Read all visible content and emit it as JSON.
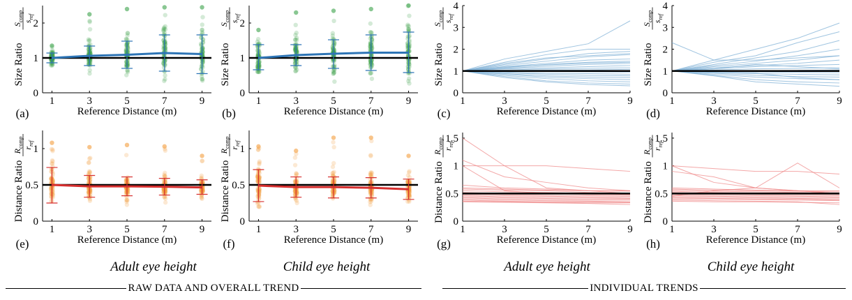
{
  "colors": {
    "size_scatter": "#3aa14a",
    "size_trend": "#2e75b6",
    "size_individual": "#7fb0d6",
    "distance_scatter": "#f39c3c",
    "distance_trend": "#d62f2f",
    "distance_individual": "#ef8a8a",
    "reference": "#000000"
  },
  "captions": {
    "adult": "Adult eye height",
    "child": "Child eye height"
  },
  "sections": {
    "raw": "RAW DATA AND OVERALL TREND",
    "individual": "INDIVIDUAL TRENDS"
  },
  "chart_data": [
    {
      "panel": "(a)",
      "type": "scatter",
      "group": "Adult eye height",
      "xlabel": "Reference Distance (m)",
      "ylabel": "Size Ratio",
      "ylabel_formula": "S_comp / s_ref",
      "x": [
        1,
        3,
        5,
        7,
        9
      ],
      "xlim": [
        0.5,
        9.5
      ],
      "ylim": [
        0,
        2.5
      ],
      "yticks": [
        0,
        1,
        2
      ],
      "xticks": [
        1,
        3,
        5,
        7,
        9
      ],
      "reference_line": 1,
      "trend": [
        1.0,
        1.06,
        1.09,
        1.14,
        1.11
      ],
      "error_low": [
        0.86,
        0.78,
        0.7,
        0.62,
        0.55
      ],
      "error_high": [
        1.14,
        1.34,
        1.48,
        1.66,
        1.66
      ],
      "spread": [
        [
          0.7,
          1.35
        ],
        [
          0.5,
          2.25
        ],
        [
          0.3,
          2.4
        ],
        [
          0.25,
          2.45
        ],
        [
          0.2,
          2.45
        ]
      ]
    },
    {
      "panel": "(b)",
      "type": "scatter",
      "group": "Child eye height",
      "xlabel": "Reference Distance (m)",
      "ylabel": "Size Ratio",
      "ylabel_formula": "S_comp / s_ref",
      "x": [
        1,
        3,
        5,
        7,
        9
      ],
      "xlim": [
        0.5,
        9.5
      ],
      "ylim": [
        0,
        2.5
      ],
      "yticks": [
        0,
        1,
        2
      ],
      "xticks": [
        1,
        3,
        5,
        7,
        9
      ],
      "reference_line": 1,
      "trend": [
        1.0,
        1.08,
        1.12,
        1.15,
        1.15
      ],
      "error_low": [
        0.66,
        0.78,
        0.7,
        0.64,
        0.58
      ],
      "error_high": [
        1.38,
        1.38,
        1.52,
        1.66,
        1.74
      ],
      "spread": [
        [
          0.6,
          1.8
        ],
        [
          0.45,
          2.3
        ],
        [
          0.3,
          2.35
        ],
        [
          0.25,
          2.4
        ],
        [
          0.2,
          2.5
        ]
      ]
    },
    {
      "panel": "(c)",
      "type": "line",
      "group": "Adult eye height",
      "xlabel": "Reference Distance (m)",
      "ylabel": "Size Ratio",
      "ylabel_formula": "S_comp / s_ref",
      "x": [
        1,
        3,
        5,
        7,
        9
      ],
      "xlim": [
        1,
        9
      ],
      "ylim": [
        0,
        4
      ],
      "yticks": [
        0,
        1,
        2,
        3,
        4
      ],
      "xticks": [
        1,
        3,
        5,
        7,
        9
      ],
      "reference_line": 1,
      "individual_series": [
        [
          1.0,
          1.55,
          1.9,
          2.25,
          3.3
        ],
        [
          1.0,
          1.4,
          1.75,
          2.0,
          2.0
        ],
        [
          1.0,
          1.3,
          1.55,
          1.8,
          1.9
        ],
        [
          1.0,
          1.25,
          1.45,
          1.65,
          1.75
        ],
        [
          1.0,
          1.2,
          1.35,
          1.5,
          1.55
        ],
        [
          1.0,
          1.15,
          1.3,
          1.4,
          1.45
        ],
        [
          1.0,
          1.12,
          1.22,
          1.3,
          1.35
        ],
        [
          1.0,
          1.1,
          1.15,
          1.2,
          1.25
        ],
        [
          1.0,
          1.05,
          1.1,
          1.12,
          1.15
        ],
        [
          1.0,
          1.02,
          1.05,
          1.05,
          1.08
        ],
        [
          1.0,
          0.98,
          0.97,
          0.96,
          0.95
        ],
        [
          1.0,
          0.95,
          0.9,
          0.88,
          0.85
        ],
        [
          1.0,
          0.92,
          0.85,
          0.8,
          0.78
        ],
        [
          1.0,
          0.88,
          0.78,
          0.72,
          0.7
        ],
        [
          1.0,
          0.85,
          0.72,
          0.65,
          0.6
        ],
        [
          1.0,
          0.8,
          0.65,
          0.55,
          0.5
        ],
        [
          1.0,
          0.75,
          0.55,
          0.45,
          0.4
        ],
        [
          1.0,
          0.7,
          0.5,
          0.38,
          0.32
        ],
        [
          1.0,
          1.35,
          1.6,
          1.7,
          1.8
        ],
        [
          1.0,
          1.18,
          1.28,
          1.36,
          1.4
        ]
      ]
    },
    {
      "panel": "(d)",
      "type": "line",
      "group": "Child eye height",
      "xlabel": "Reference Distance (m)",
      "ylabel": "Size Ratio",
      "ylabel_formula": "S_comp / s_ref",
      "x": [
        1,
        3,
        5,
        7,
        9
      ],
      "xlim": [
        1,
        9
      ],
      "ylim": [
        0,
        4
      ],
      "yticks": [
        0,
        1,
        2,
        3,
        4
      ],
      "xticks": [
        1,
        3,
        5,
        7,
        9
      ],
      "reference_line": 1,
      "individual_series": [
        [
          2.3,
          1.5,
          1.5,
          1.6,
          1.7
        ],
        [
          1.0,
          1.5,
          2.0,
          2.5,
          3.2
        ],
        [
          1.0,
          1.4,
          1.7,
          2.3,
          2.8
        ],
        [
          1.0,
          1.3,
          1.6,
          1.9,
          2.4
        ],
        [
          1.0,
          1.25,
          1.45,
          1.7,
          2.0
        ],
        [
          1.0,
          1.2,
          1.35,
          1.5,
          1.7
        ],
        [
          1.0,
          1.15,
          1.25,
          1.35,
          1.5
        ],
        [
          1.0,
          1.1,
          1.2,
          1.25,
          1.3
        ],
        [
          1.0,
          1.05,
          1.1,
          1.12,
          1.15
        ],
        [
          1.0,
          1.0,
          1.02,
          1.03,
          1.05
        ],
        [
          1.0,
          0.97,
          0.95,
          0.94,
          0.92
        ],
        [
          1.0,
          0.93,
          0.88,
          0.85,
          0.82
        ],
        [
          1.0,
          0.9,
          0.8,
          0.75,
          0.72
        ],
        [
          1.0,
          0.85,
          0.72,
          0.65,
          0.6
        ],
        [
          1.0,
          0.8,
          0.6,
          0.5,
          0.45
        ],
        [
          1.0,
          0.78,
          0.5,
          0.4,
          0.3
        ],
        [
          1.0,
          0.95,
          0.9,
          0.7,
          0.6
        ],
        [
          1.0,
          1.1,
          1.3,
          1.2,
          1.1
        ]
      ]
    },
    {
      "panel": "(e)",
      "type": "scatter",
      "group": "Adult eye height",
      "xlabel": "Reference Distance (m)",
      "ylabel": "Distance Ratio",
      "ylabel_formula": "R_comp / r_ref",
      "x": [
        1,
        3,
        5,
        7,
        9
      ],
      "xlim": [
        0.5,
        9.5
      ],
      "ylim": [
        0,
        1.25
      ],
      "yticks": [
        0,
        0.5,
        1
      ],
      "xticks": [
        1,
        3,
        5,
        7,
        9
      ],
      "reference_line": 0.5,
      "trend": [
        0.5,
        0.48,
        0.48,
        0.475,
        0.465
      ],
      "error_low": [
        0.25,
        0.33,
        0.35,
        0.36,
        0.37
      ],
      "error_high": [
        0.74,
        0.63,
        0.61,
        0.59,
        0.57
      ],
      "spread": [
        [
          0.2,
          1.08
        ],
        [
          0.22,
          1.02
        ],
        [
          0.22,
          1.05
        ],
        [
          0.15,
          1.03
        ],
        [
          0.25,
          0.9
        ]
      ]
    },
    {
      "panel": "(f)",
      "type": "scatter",
      "group": "Child eye height",
      "xlabel": "Reference Distance (m)",
      "ylabel": "Distance Ratio",
      "ylabel_formula": "R_comp / r_ref",
      "x": [
        1,
        3,
        5,
        7,
        9
      ],
      "xlim": [
        0.5,
        9.5
      ],
      "ylim": [
        0,
        1.25
      ],
      "yticks": [
        0,
        0.5,
        1
      ],
      "xticks": [
        1,
        3,
        5,
        7,
        9
      ],
      "reference_line": 0.5,
      "trend": [
        0.49,
        0.47,
        0.47,
        0.46,
        0.44
      ],
      "error_low": [
        0.27,
        0.33,
        0.32,
        0.32,
        0.3
      ],
      "error_high": [
        0.71,
        0.61,
        0.61,
        0.6,
        0.58
      ],
      "spread": [
        [
          0.2,
          1.03
        ],
        [
          0.25,
          0.97
        ],
        [
          0.2,
          1.15
        ],
        [
          0.22,
          1.15
        ],
        [
          0.22,
          0.9
        ]
      ]
    },
    {
      "panel": "(g)",
      "type": "line",
      "group": "Adult eye height",
      "xlabel": "Reference Distance (m)",
      "ylabel": "Distance Ratio",
      "ylabel_formula": "R_comp / r_ref",
      "x": [
        1,
        3,
        5,
        7,
        9
      ],
      "xlim": [
        1,
        9
      ],
      "ylim": [
        0,
        1.6
      ],
      "yticks": [
        0,
        0.5,
        1,
        1.5
      ],
      "xticks": [
        1,
        3,
        5,
        7,
        9
      ],
      "reference_line": 0.5,
      "individual_series": [
        [
          1.5,
          1.0,
          0.6,
          0.55,
          0.5
        ],
        [
          1.0,
          1.0,
          1.0,
          0.95,
          0.9
        ],
        [
          1.0,
          0.55,
          0.5,
          0.5,
          0.48
        ],
        [
          1.1,
          0.8,
          0.7,
          0.6,
          0.55
        ],
        [
          0.65,
          0.6,
          0.58,
          0.55,
          0.55
        ],
        [
          0.6,
          0.58,
          0.56,
          0.55,
          0.54
        ],
        [
          0.58,
          0.56,
          0.55,
          0.52,
          0.5
        ],
        [
          0.55,
          0.53,
          0.52,
          0.5,
          0.5
        ],
        [
          0.52,
          0.5,
          0.5,
          0.48,
          0.47
        ],
        [
          0.5,
          0.48,
          0.47,
          0.46,
          0.45
        ],
        [
          0.48,
          0.46,
          0.45,
          0.44,
          0.43
        ],
        [
          0.46,
          0.44,
          0.43,
          0.42,
          0.41
        ],
        [
          0.44,
          0.42,
          0.41,
          0.4,
          0.4
        ],
        [
          0.42,
          0.4,
          0.39,
          0.38,
          0.38
        ],
        [
          0.4,
          0.38,
          0.37,
          0.36,
          0.35
        ],
        [
          0.38,
          0.36,
          0.35,
          0.35,
          0.34
        ],
        [
          0.36,
          0.35,
          0.34,
          0.33,
          0.33
        ],
        [
          0.35,
          0.34,
          0.33,
          0.32,
          0.3
        ]
      ]
    },
    {
      "panel": "(h)",
      "type": "line",
      "group": "Child eye height",
      "xlabel": "Reference Distance (m)",
      "ylabel": "Distance Ratio",
      "ylabel_formula": "R_comp / r_ref",
      "x": [
        1,
        3,
        5,
        7,
        9
      ],
      "xlim": [
        1,
        9
      ],
      "ylim": [
        0,
        1.6
      ],
      "yticks": [
        0,
        0.5,
        1,
        1.5
      ],
      "xticks": [
        1,
        3,
        5,
        7,
        9
      ],
      "reference_line": 0.5,
      "individual_series": [
        [
          1.0,
          0.7,
          0.6,
          0.55,
          0.5
        ],
        [
          1.0,
          0.95,
          0.9,
          0.9,
          0.85
        ],
        [
          0.9,
          0.8,
          0.6,
          0.55,
          0.5
        ],
        [
          0.6,
          0.58,
          0.56,
          0.55,
          0.55
        ],
        [
          0.58,
          0.56,
          0.55,
          0.54,
          0.53
        ],
        [
          0.56,
          0.54,
          0.53,
          0.52,
          0.51
        ],
        [
          0.54,
          0.52,
          0.51,
          0.5,
          0.5
        ],
        [
          0.52,
          0.5,
          0.5,
          0.49,
          0.48
        ],
        [
          0.5,
          0.49,
          0.48,
          0.47,
          0.46
        ],
        [
          0.48,
          0.47,
          0.46,
          0.45,
          0.44
        ],
        [
          0.46,
          0.45,
          0.44,
          0.43,
          0.42
        ],
        [
          0.44,
          0.43,
          0.42,
          0.41,
          0.4
        ],
        [
          0.42,
          0.41,
          0.4,
          0.4,
          0.38
        ],
        [
          0.4,
          0.4,
          0.39,
          0.38,
          0.37
        ],
        [
          0.38,
          0.37,
          0.36,
          0.35,
          0.3
        ],
        [
          0.36,
          0.35,
          0.35,
          0.34,
          0.33
        ],
        [
          0.45,
          0.55,
          0.6,
          1.05,
          0.6
        ]
      ]
    }
  ]
}
